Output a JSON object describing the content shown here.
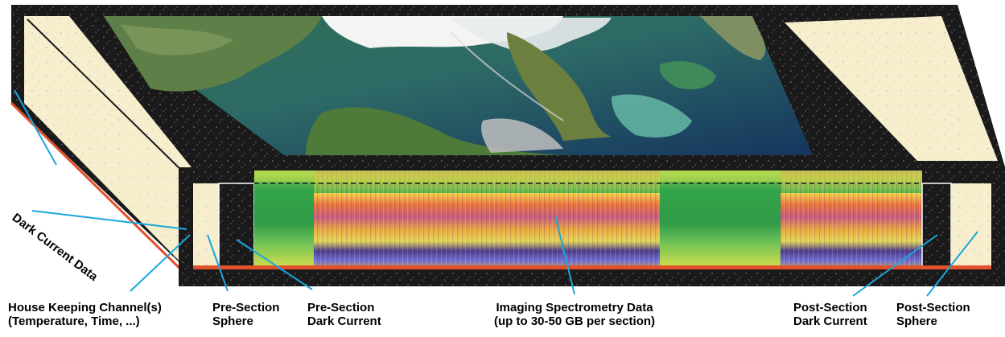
{
  "labels": {
    "dark_current_data": "Dark Current Data",
    "house_keeping_line1": "House Keeping Channel(s)",
    "house_keeping_line2": "(Temperature, Time, ...)",
    "pre_sphere_line1": "Pre-Section",
    "pre_sphere_line2": "Sphere",
    "pre_dark_line1": "Pre-Section",
    "pre_dark_line2": "Dark Current",
    "imaging_line1": "Imaging Spectrometry Data",
    "imaging_line2": "(up to 30-50 GB per section)",
    "post_dark_line1": "Post-Section",
    "post_dark_line2": "Dark Current",
    "post_sphere_line1": "Post-Section",
    "post_sphere_line2": "Sphere"
  },
  "colors": {
    "frame": "#1a1a1a",
    "sphere_fill": "#f6eecd",
    "spectral_green": "#3aa84a",
    "leader_line": "#19a6de",
    "housekeeping_stripe": "#e2502c"
  },
  "icons": {
    "scene_image": "satellite-scene-icon"
  }
}
